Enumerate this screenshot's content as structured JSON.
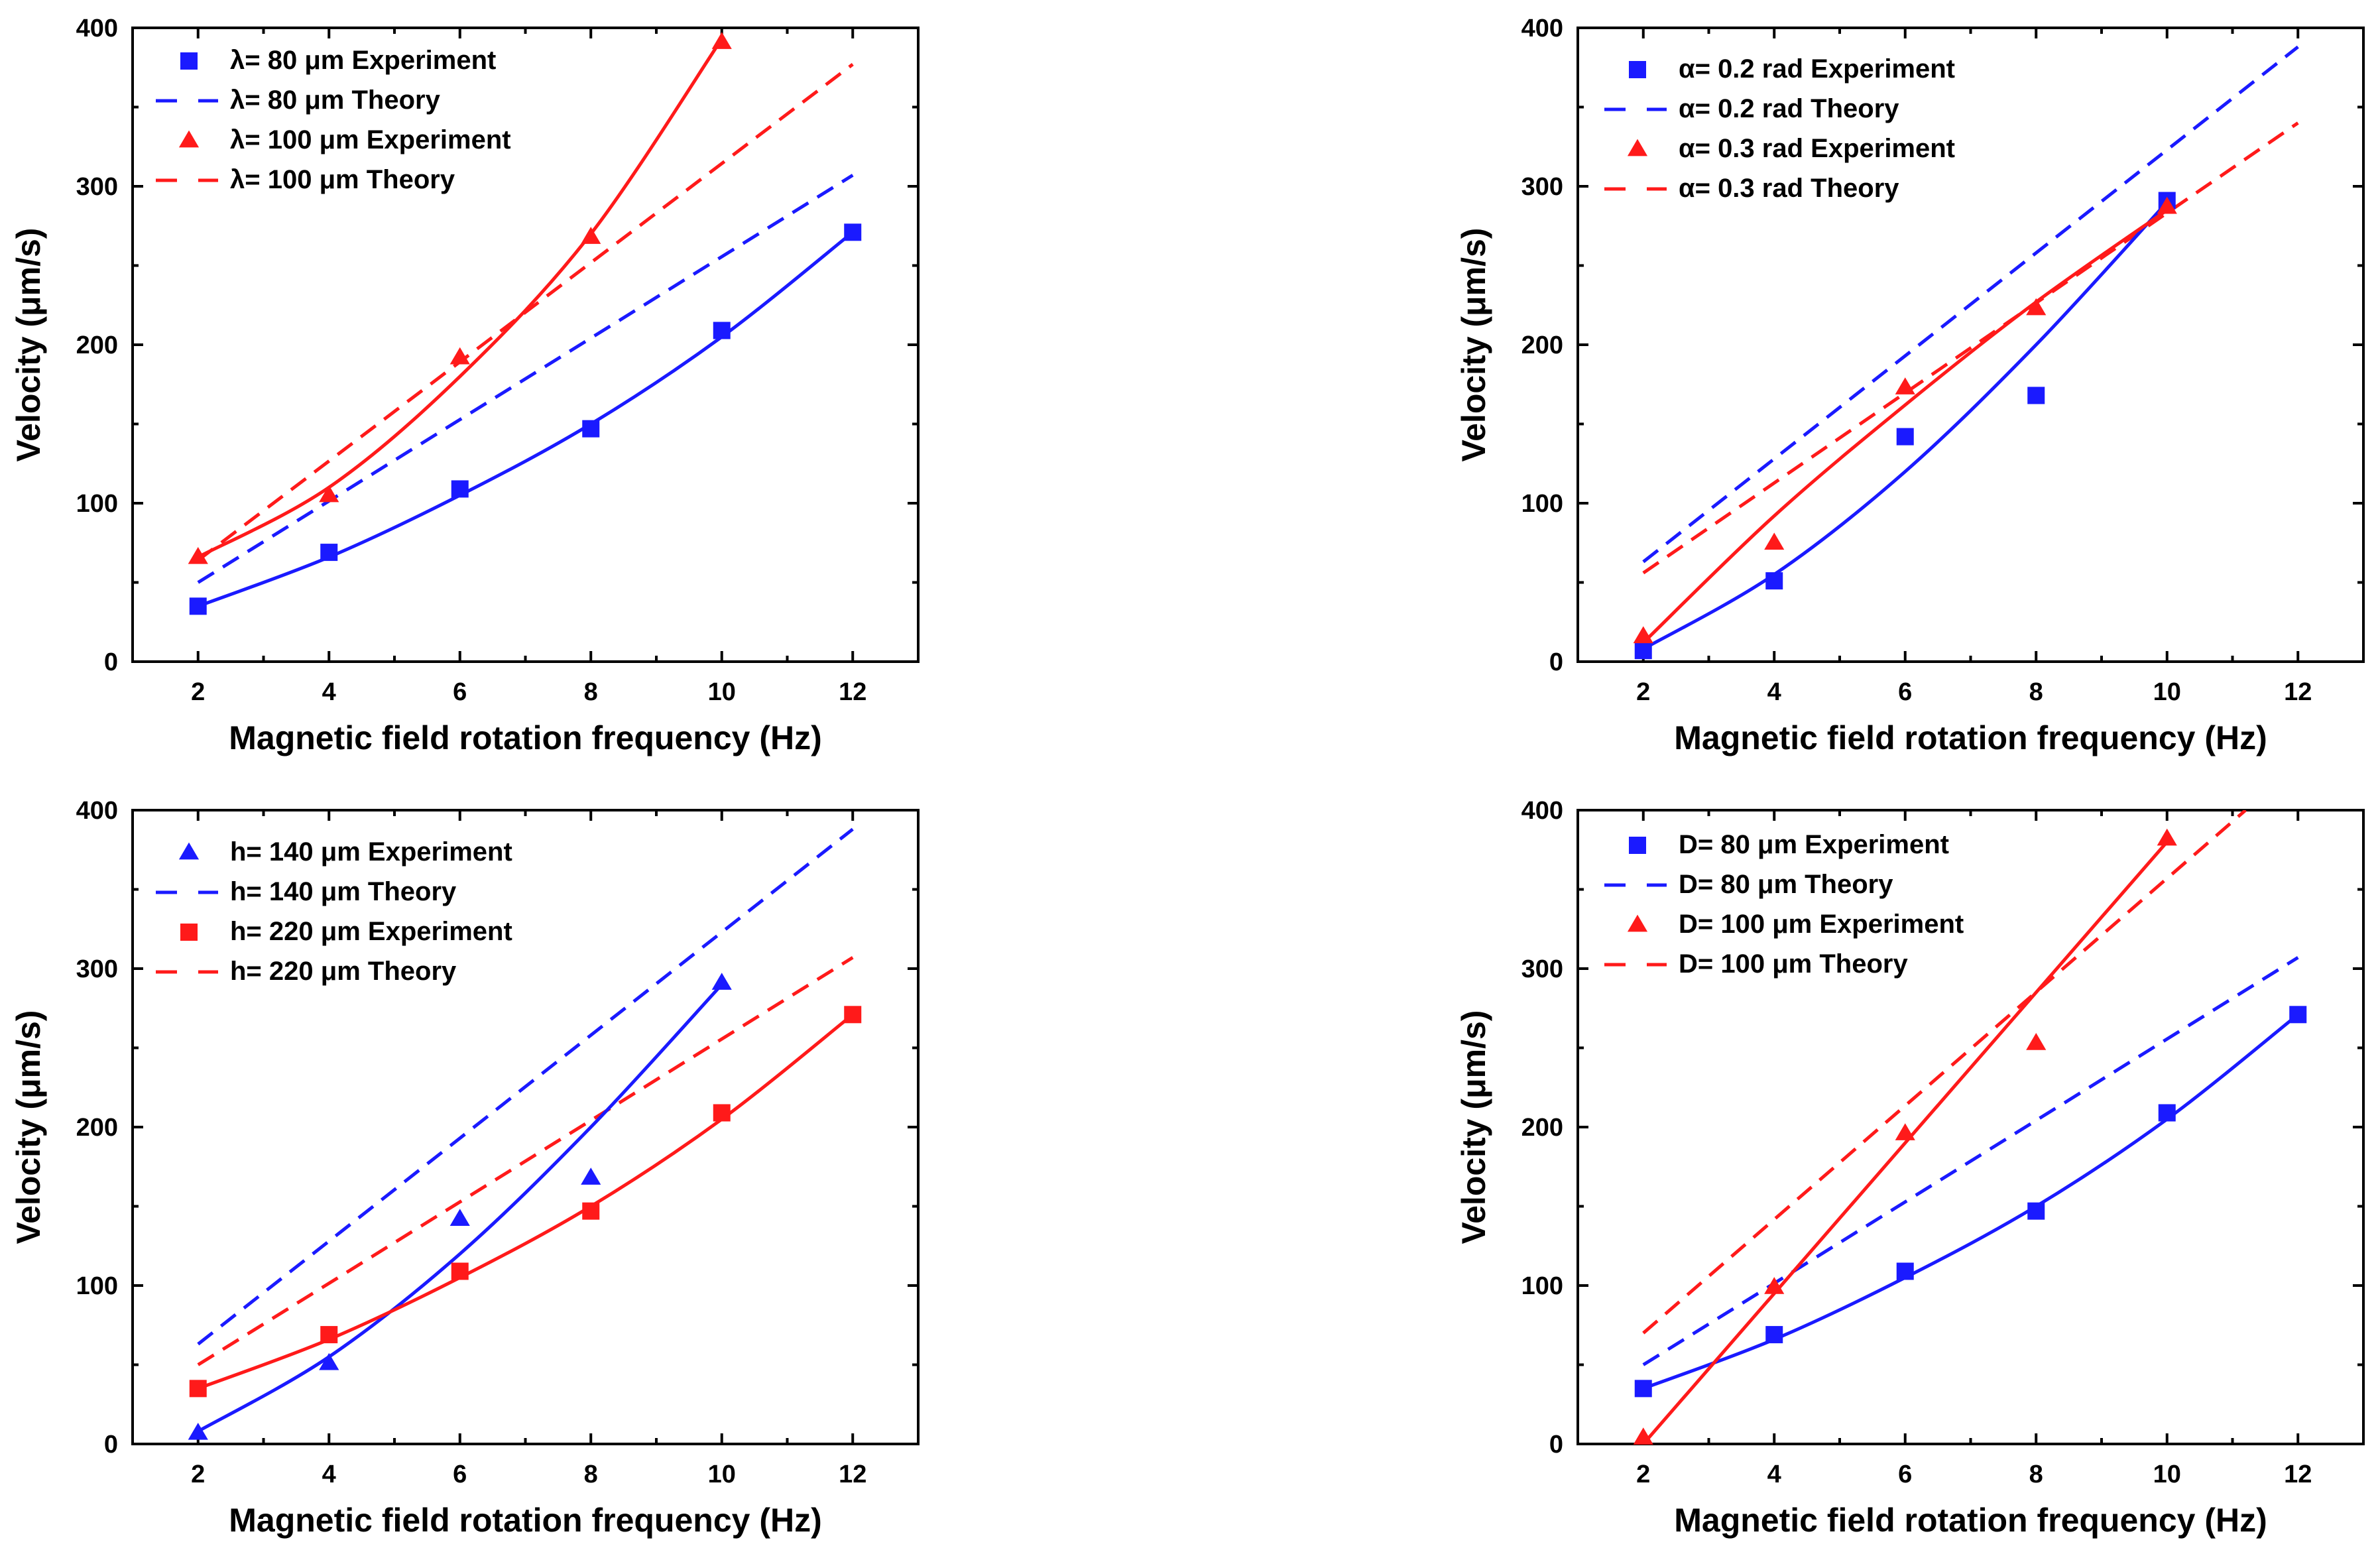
{
  "chart_data": [
    {
      "type": "line",
      "xlabel": "Magnetic field rotation frequency (Hz)",
      "ylabel": "Velocity (μm/s)",
      "xlim": [
        1,
        13
      ],
      "ylim": [
        0,
        400
      ],
      "xticks": [
        2,
        4,
        6,
        8,
        10,
        12
      ],
      "yticks": [
        0,
        100,
        200,
        300,
        400
      ],
      "legend": "top-left",
      "series": [
        {
          "name": "λ=  80 μm Experiment",
          "style": "markers",
          "marker": "square",
          "color": "#1a1aff",
          "x": [
            2,
            4,
            6,
            8,
            10,
            12
          ],
          "y": [
            35,
            69,
            109,
            147,
            209,
            271
          ]
        },
        {
          "name": "λ=  80 μm Theory",
          "style": "dashed",
          "color": "#1a1aff",
          "x": [
            2,
            12
          ],
          "y": [
            50,
            307
          ]
        },
        {
          "name": "λ= 100 μm Experiment",
          "style": "markers",
          "marker": "triangle",
          "color": "#ff1a1a",
          "x": [
            2,
            4,
            6,
            8,
            10
          ],
          "y": [
            66,
            105,
            192,
            268,
            391
          ]
        },
        {
          "name": "λ= 100 μm Theory",
          "style": "dashed",
          "color": "#ff1a1a",
          "x": [
            2,
            12
          ],
          "y": [
            64,
            377
          ]
        },
        {
          "style": "solid",
          "color": "#1a1aff",
          "x": [
            2,
            4,
            6,
            8,
            10,
            12
          ],
          "y": [
            35,
            66,
            105,
            150,
            205,
            271
          ]
        },
        {
          "style": "solid",
          "color": "#ff1a1a",
          "x": [
            2,
            4,
            6,
            8,
            10
          ],
          "y": [
            66,
            110,
            180,
            270,
            393
          ]
        }
      ]
    },
    {
      "type": "line",
      "xlabel": "Magnetic field rotation frequency (Hz)",
      "ylabel": "Velocity (μm/s)",
      "xlim": [
        1,
        13
      ],
      "ylim": [
        0,
        400
      ],
      "xticks": [
        2,
        4,
        6,
        8,
        10,
        12
      ],
      "yticks": [
        0,
        100,
        200,
        300,
        400
      ],
      "legend": "top-left",
      "series": [
        {
          "name": "α= 0.2 rad Experiment",
          "style": "markers",
          "marker": "square",
          "color": "#1a1aff",
          "x": [
            2,
            4,
            6,
            8,
            10
          ],
          "y": [
            7,
            51,
            142,
            168,
            291
          ]
        },
        {
          "name": "α= 0.2 rad Theory",
          "style": "dashed",
          "color": "#1a1aff",
          "x": [
            2,
            12
          ],
          "y": [
            63,
            388
          ]
        },
        {
          "name": "α= 0.3 rad Experiment",
          "style": "markers",
          "marker": "triangle",
          "color": "#ff1a1a",
          "x": [
            2,
            4,
            6,
            8,
            10
          ],
          "y": [
            16,
            75,
            173,
            223,
            287
          ]
        },
        {
          "name": "α= 0.3 rad Theory",
          "style": "dashed",
          "color": "#ff1a1a",
          "x": [
            2,
            12
          ],
          "y": [
            56,
            340
          ]
        },
        {
          "style": "solid",
          "color": "#1a1aff",
          "x": [
            2,
            4,
            6,
            8,
            10
          ],
          "y": [
            8,
            55,
            120,
            200,
            290
          ]
        },
        {
          "style": "solid",
          "color": "#ff1a1a",
          "x": [
            2,
            4,
            6,
            8,
            10
          ],
          "y": [
            12,
            92,
            162,
            227,
            285
          ]
        }
      ]
    },
    {
      "type": "line",
      "xlabel": "Magnetic field rotation frequency (Hz)",
      "ylabel": "Velocity (μm/s)",
      "xlim": [
        1,
        13
      ],
      "ylim": [
        0,
        400
      ],
      "xticks": [
        2,
        4,
        6,
        8,
        10,
        12
      ],
      "yticks": [
        0,
        100,
        200,
        300,
        400
      ],
      "legend": "top-left",
      "series": [
        {
          "name": "h= 140 μm Experiment",
          "style": "markers",
          "marker": "triangle",
          "color": "#1a1aff",
          "x": [
            2,
            4,
            6,
            8,
            10
          ],
          "y": [
            7,
            51,
            142,
            168,
            291
          ]
        },
        {
          "name": "h= 140 μm Theory",
          "style": "dashed",
          "color": "#1a1aff",
          "x": [
            2,
            12
          ],
          "y": [
            63,
            388
          ]
        },
        {
          "name": "h= 220 μm Experiment",
          "style": "markers",
          "marker": "square",
          "color": "#ff1a1a",
          "x": [
            2,
            4,
            6,
            8,
            10,
            12
          ],
          "y": [
            35,
            69,
            109,
            147,
            209,
            271
          ]
        },
        {
          "name": "h= 220 μm Theory",
          "style": "dashed",
          "color": "#ff1a1a",
          "x": [
            2,
            12
          ],
          "y": [
            50,
            307
          ]
        },
        {
          "style": "solid",
          "color": "#1a1aff",
          "x": [
            2,
            4,
            6,
            8,
            10
          ],
          "y": [
            8,
            55,
            120,
            200,
            290
          ]
        },
        {
          "style": "solid",
          "color": "#ff1a1a",
          "x": [
            2,
            4,
            6,
            8,
            10,
            12
          ],
          "y": [
            35,
            66,
            105,
            150,
            205,
            271
          ]
        }
      ]
    },
    {
      "type": "line",
      "xlabel": "Magnetic field rotation frequency (Hz)",
      "ylabel": "Velocity (μm/s)",
      "xlim": [
        1,
        13
      ],
      "ylim": [
        0,
        400
      ],
      "xticks": [
        2,
        4,
        6,
        8,
        10,
        12
      ],
      "yticks": [
        0,
        100,
        200,
        300,
        400
      ],
      "legend": "top-left",
      "series": [
        {
          "name": "D=  80 μm  Experiment",
          "style": "markers",
          "marker": "square",
          "color": "#1a1aff",
          "x": [
            2,
            4,
            6,
            8,
            10,
            12
          ],
          "y": [
            35,
            69,
            109,
            147,
            209,
            271
          ]
        },
        {
          "name": "D=  80 μm  Theory",
          "style": "dashed",
          "color": "#1a1aff",
          "x": [
            2,
            12
          ],
          "y": [
            50,
            307
          ]
        },
        {
          "name": "D= 100 μm Experiment",
          "style": "markers",
          "marker": "triangle",
          "color": "#ff1a1a",
          "x": [
            2,
            4,
            6,
            8,
            10
          ],
          "y": [
            4,
            99,
            196,
            253,
            382
          ]
        },
        {
          "name": "D= 100 μm Theory",
          "style": "dashed",
          "color": "#ff1a1a",
          "x": [
            2,
            11.2
          ],
          "y": [
            70,
            400
          ]
        },
        {
          "style": "solid",
          "color": "#1a1aff",
          "x": [
            2,
            4,
            6,
            8,
            10,
            12
          ],
          "y": [
            35,
            66,
            105,
            150,
            205,
            271
          ]
        },
        {
          "style": "solid",
          "color": "#ff1a1a",
          "x": [
            2,
            10
          ],
          "y": [
            0,
            380
          ]
        }
      ]
    }
  ]
}
